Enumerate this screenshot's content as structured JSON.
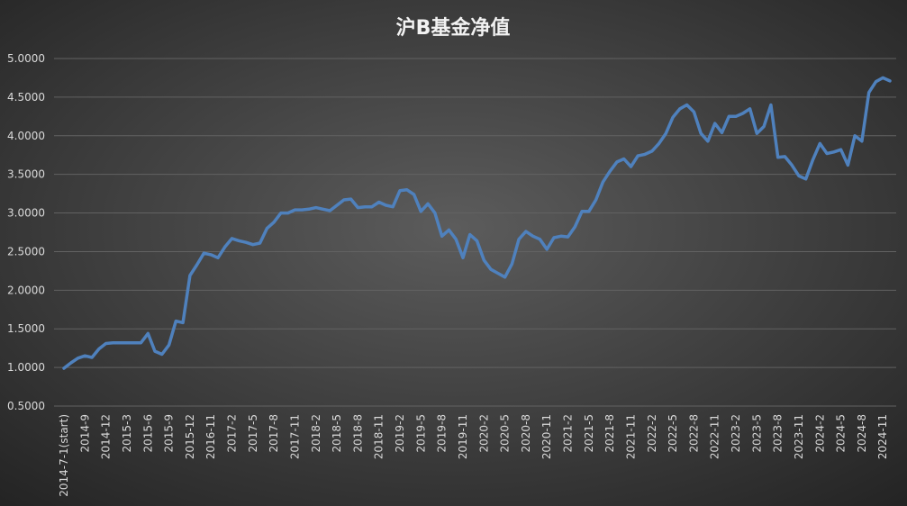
{
  "chart_data": {
    "type": "line",
    "title": "沪B基金净值",
    "categories": [
      "2014-7-1(start)",
      null,
      null,
      "2014-9",
      null,
      null,
      "2014-12",
      null,
      null,
      "2015-3",
      null,
      null,
      "2015-6",
      null,
      null,
      "2015-9",
      null,
      null,
      "2015-12",
      null,
      null,
      "2016-11",
      null,
      null,
      "2017-2",
      null,
      null,
      "2017-5",
      null,
      null,
      "2017-8",
      null,
      null,
      "2017-11",
      null,
      null,
      "2018-2",
      null,
      null,
      "2018-5",
      null,
      null,
      "2018-8",
      null,
      null,
      "2018-11",
      null,
      null,
      "2019-2",
      null,
      null,
      "2019-5",
      null,
      null,
      "2019-8",
      null,
      null,
      "2019-11",
      null,
      null,
      "2020-2",
      null,
      null,
      "2020-5",
      null,
      null,
      "2020-8",
      null,
      null,
      "2020-11",
      null,
      null,
      "2021-2",
      null,
      null,
      "2021-5",
      null,
      null,
      "2021-8",
      null,
      null,
      "2021-11",
      null,
      null,
      "2022-2",
      null,
      null,
      "2022-5",
      null,
      null,
      "2022-8",
      null,
      null,
      "2022-11",
      null,
      null,
      "2023-2",
      null,
      null,
      "2023-5",
      null,
      null,
      "2023-8",
      null,
      null,
      "2023-11",
      null,
      null,
      "2024-2",
      null,
      null,
      "2024-5",
      null,
      null,
      "2024-8",
      null,
      null,
      "2024-11",
      null
    ],
    "values": [
      0.99,
      1.06,
      1.12,
      1.15,
      1.13,
      1.24,
      1.31,
      1.32,
      1.32,
      1.32,
      1.32,
      1.32,
      1.44,
      1.21,
      1.17,
      1.29,
      1.6,
      1.58,
      2.19,
      2.33,
      2.48,
      2.46,
      2.42,
      2.56,
      2.67,
      2.64,
      2.62,
      2.59,
      2.61,
      2.8,
      2.88,
      3.0,
      3.0,
      3.04,
      3.04,
      3.05,
      3.07,
      3.05,
      3.03,
      3.1,
      3.17,
      3.18,
      3.07,
      3.08,
      3.08,
      3.14,
      3.1,
      3.08,
      3.29,
      3.3,
      3.24,
      3.02,
      3.12,
      3.0,
      2.7,
      2.78,
      2.66,
      2.42,
      2.72,
      2.64,
      2.39,
      2.27,
      2.22,
      2.17,
      2.34,
      2.66,
      2.76,
      2.7,
      2.66,
      2.53,
      2.68,
      2.7,
      2.69,
      2.82,
      3.02,
      3.02,
      3.17,
      3.4,
      3.54,
      3.66,
      3.7,
      3.6,
      3.74,
      3.76,
      3.8,
      3.9,
      4.03,
      4.24,
      4.35,
      4.4,
      4.31,
      4.03,
      3.93,
      4.16,
      4.04,
      4.25,
      4.25,
      4.29,
      4.35,
      4.03,
      4.12,
      4.4,
      3.72,
      3.73,
      3.62,
      3.48,
      3.44,
      3.69,
      3.9,
      3.77,
      3.79,
      3.82,
      3.62,
      4.0,
      3.93,
      4.56,
      4.7,
      4.75,
      4.71
    ],
    "color": "#4f81bd",
    "ylim": [
      0.5,
      5.0
    ],
    "yticks": [
      {
        "value": 0.5,
        "label": "0.5000"
      },
      {
        "value": 1.0,
        "label": "1.0000"
      },
      {
        "value": 1.5,
        "label": "1.5000"
      },
      {
        "value": 2.0,
        "label": "2.0000"
      },
      {
        "value": 2.5,
        "label": "2.5000"
      },
      {
        "value": 3.0,
        "label": "3.0000"
      },
      {
        "value": 3.5,
        "label": "3.5000"
      },
      {
        "value": 4.0,
        "label": "4.0000"
      },
      {
        "value": 4.5,
        "label": "4.5000"
      },
      {
        "value": 5.0,
        "label": "5.0000"
      }
    ],
    "grid": true
  }
}
